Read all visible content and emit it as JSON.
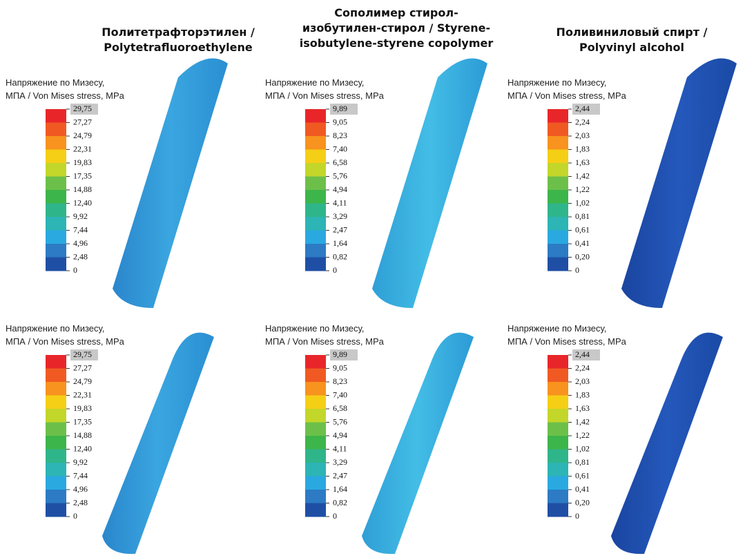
{
  "columns": [
    {
      "title": [
        "Политетрафторэтилен /",
        "Polytetrafluoroethylene"
      ],
      "panels": [
        {
          "legend_title": [
            "Напряжение по Мизесу,",
            "МПА / Von Mises stress, MPa"
          ],
          "ticks": [
            "29,75",
            "27,27",
            "24,79",
            "22,31",
            "19,83",
            "17,35",
            "14,88",
            "12,40",
            "9,92",
            "7,44",
            "4,96",
            "2,48",
            "0"
          ]
        },
        {
          "legend_title": [
            "Напряжение по Мизесу,",
            "МПА / Von Mises stress, MPa"
          ],
          "ticks": [
            "29,75",
            "27,27",
            "24,79",
            "22,31",
            "19,83",
            "17,35",
            "14,88",
            "12,40",
            "9,92",
            "7,44",
            "4,96",
            "2,48",
            "0"
          ]
        }
      ]
    },
    {
      "title": [
        "Сополимер стирол-",
        "изобутилен-стирол / Styrene-",
        "isobutylene-styrene copolymer"
      ],
      "panels": [
        {
          "legend_title": [
            "Напряжение по Мизесу,",
            "МПА / Von Mises stress, MPa"
          ],
          "ticks": [
            "9,89",
            "9,05",
            "8,23",
            "7,40",
            "6,58",
            "5,76",
            "4,94",
            "4,11",
            "3,29",
            "2,47",
            "1,64",
            "0,82",
            "0"
          ]
        },
        {
          "legend_title": [
            "Напряжение по Мизесу,",
            "МПА / Von Mises stress, MPa"
          ],
          "ticks": [
            "9,89",
            "9,05",
            "8,23",
            "7,40",
            "6,58",
            "5,76",
            "4,94",
            "4,11",
            "3,29",
            "2,47",
            "1,64",
            "0,82",
            "0"
          ]
        }
      ]
    },
    {
      "title": [
        "Поливиниловый спирт /",
        "Polyvinyl alcohol"
      ],
      "panels": [
        {
          "legend_title": [
            "Напряжение по Мизесу,",
            "МПА / Von Mises stress, MPa"
          ],
          "ticks": [
            "2,44",
            "2,24",
            "2,03",
            "1,83",
            "1,63",
            "1,42",
            "1,22",
            "1,02",
            "0,81",
            "0,61",
            "0,41",
            "0,20",
            "0"
          ]
        },
        {
          "legend_title": [
            "Напряжение по Мизесу,",
            "МПА / Von Mises stress, MPa"
          ],
          "ticks": [
            "2,44",
            "2,24",
            "2,03",
            "1,83",
            "1,63",
            "1,42",
            "1,22",
            "1,02",
            "0,81",
            "0,61",
            "0,41",
            "0,20",
            "0"
          ]
        }
      ]
    }
  ]
}
